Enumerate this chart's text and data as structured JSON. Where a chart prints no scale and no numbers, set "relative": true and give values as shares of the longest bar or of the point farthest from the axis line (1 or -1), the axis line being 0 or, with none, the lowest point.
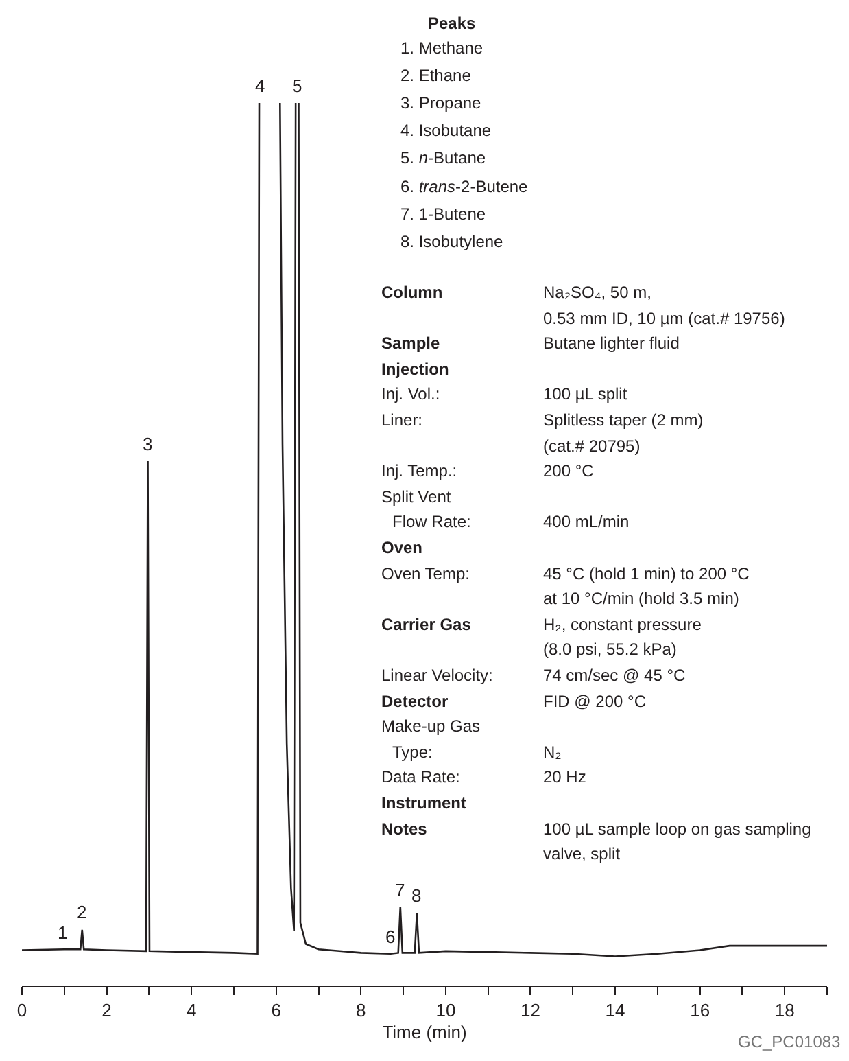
{
  "chart_data": {
    "type": "line",
    "relative": true,
    "xlabel": "Time (min)",
    "xlim": [
      0,
      19
    ],
    "xticks": [
      0,
      {
        "value": 1,
        "label": null
      },
      2,
      {
        "value": 3,
        "label": null
      },
      4,
      {
        "value": 5,
        "label": null
      },
      6,
      {
        "value": 7,
        "label": null
      },
      8,
      {
        "value": 9,
        "label": null
      },
      10,
      {
        "value": 11,
        "label": null
      },
      12,
      {
        "value": 13,
        "label": null
      },
      14,
      {
        "value": 15,
        "label": null
      },
      16,
      {
        "value": 17,
        "label": null
      },
      18,
      {
        "value": 19,
        "label": null
      }
    ],
    "series": [
      {
        "color": "#231f20",
        "x": [
          0,
          1.0,
          1.2,
          1.38,
          1.42,
          1.46,
          2.0,
          2.93,
          2.97,
          3.01,
          4.0,
          5.0,
          5.56,
          5.6,
          5.62,
          6.09,
          6.15,
          6.25,
          6.35,
          6.42,
          6.46,
          6.5,
          6.53,
          6.57,
          6.7,
          7.0,
          8.0,
          8.7,
          8.88,
          8.93,
          8.98,
          9.27,
          9.32,
          9.37,
          10,
          11,
          12,
          13,
          14,
          15,
          16,
          16.7,
          17.5,
          19
        ],
        "values": [
          0.04,
          0.041,
          0.041,
          0.041,
          0.063,
          0.041,
          0.04,
          0.039,
          0.594,
          0.039,
          0.038,
          0.037,
          0.036,
          1.0,
          null,
          1.0,
          0.613,
          0.274,
          0.11,
          0.062,
          1.0,
          null,
          1.0,
          0.071,
          0.047,
          0.041,
          0.037,
          0.036,
          0.037,
          0.089,
          0.037,
          0.037,
          0.082,
          0.037,
          0.039,
          0.038,
          0.037,
          0.036,
          0.033,
          0.036,
          0.04,
          0.045,
          0.045,
          0.045
        ]
      }
    ],
    "annotations": [
      "Peaks",
      "1. Methane",
      "2. Ethane",
      "3. Propane",
      "4. Isobutane",
      "5. n-Butane",
      "6. trans-2-Butene",
      "7. 1-Butene",
      "8. Isobutylene",
      "Column",
      "Na₂SO₄, 50 m,",
      "0.53 mm ID, 10 µm (cat.# 19756)",
      "Sample",
      "Butane lighter fluid",
      "Injection",
      "Inj. Vol.:",
      "100 µL split",
      "Liner:",
      "Splitless taper (2 mm)",
      "(cat.# 20795)",
      "Inj. Temp.:",
      "200 °C",
      "Split Vent",
      "Flow Rate:",
      "400 mL/min",
      "Oven",
      "Oven Temp:",
      "45 °C (hold 1 min) to 200 °C",
      "at 10 °C/min (hold 3.5 min)",
      "Carrier Gas",
      "H₂, constant pressure",
      "(8.0 psi, 55.2 kPa)",
      "Linear Velocity:",
      "74 cm/sec @ 45 °C",
      "Detector",
      "FID @ 200 °C",
      "Make-up Gas",
      "Type:",
      "N₂",
      "Data Rate:",
      "20 Hz",
      "Instrument",
      "Notes",
      "100 µL sample loop on gas sampling",
      "valve, split",
      "GC_PC01083",
      {
        "text": "1",
        "x": 0.97,
        "y": 0.041
      },
      {
        "text": "2",
        "x": 1.42,
        "y": 0.063
      },
      {
        "text": "3",
        "x": 2.97,
        "y": 0.594
      },
      {
        "text": "4",
        "x": 5.6,
        "y": 1.0
      },
      {
        "text": "5",
        "x": 6.5,
        "y": 1.0
      },
      {
        "text": "6",
        "x": 8.68,
        "y": 0.036
      },
      {
        "text": "7",
        "x": 8.93,
        "y": 0.089
      },
      {
        "text": "8",
        "x": 9.32,
        "y": 0.082
      }
    ]
  }
}
